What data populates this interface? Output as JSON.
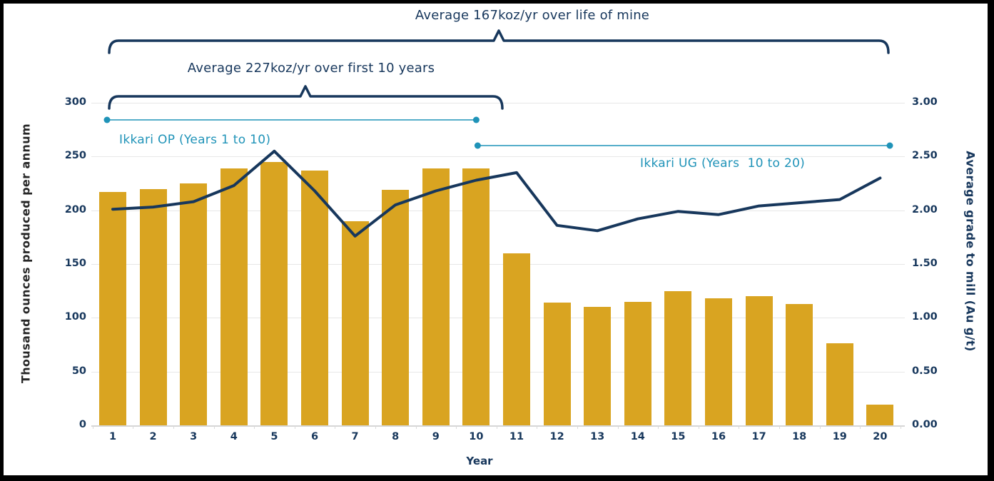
{
  "annotations": {
    "life_of_mine": {
      "label": "Average 167koz/yr over life of mine",
      "years": "1 to 20",
      "value_koz_per_yr": 167
    },
    "first_ten_years": {
      "label": "Average 227koz/yr over first 10 years",
      "years": "1 to 10",
      "value_koz_per_yr": 227
    },
    "ikkari_op": {
      "label": "Ikkari OP (Years 1 to 10)"
    },
    "ikkari_ug": {
      "label": "Ikkari UG (Years  10 to 20)"
    }
  },
  "axes": {
    "x_title": "Year",
    "left_title": "Thousand ounces produced per annum",
    "right_title": "Average grade to mill (Au g/t)",
    "left_ticks": [
      "0",
      "50",
      "100",
      "150",
      "200",
      "250",
      "300"
    ],
    "right_ticks": [
      "0.00",
      "0.50",
      "1.00",
      "1.50",
      "2.00",
      "2.50",
      "3.00"
    ]
  },
  "chart_data": {
    "type": "bar+line",
    "categories": [
      "1",
      "2",
      "3",
      "4",
      "5",
      "6",
      "7",
      "8",
      "9",
      "10",
      "11",
      "12",
      "13",
      "14",
      "15",
      "16",
      "17",
      "18",
      "19",
      "20"
    ],
    "xlabel": "Year",
    "series": [
      {
        "name": "Thousand ounces produced per annum",
        "chart": "bar",
        "axis": "left",
        "color": "#D9A421",
        "values": [
          217,
          220,
          225,
          239,
          245,
          237,
          190,
          219,
          239,
          239,
          160,
          114,
          110,
          115,
          125,
          118,
          120,
          113,
          76,
          19
        ]
      },
      {
        "name": "Average grade to mill (Au g/t)",
        "chart": "line",
        "axis": "right",
        "color": "#17375C",
        "values": [
          2.01,
          2.03,
          2.08,
          2.23,
          2.55,
          2.18,
          1.76,
          2.05,
          2.18,
          2.28,
          2.35,
          1.86,
          1.81,
          1.92,
          1.99,
          1.96,
          2.04,
          2.07,
          2.1,
          2.3
        ]
      }
    ],
    "left_ylim": [
      0,
      300
    ],
    "right_ylim": [
      0,
      3.0
    ],
    "grid": true,
    "legend_position": "none"
  },
  "colors": {
    "bar_gold": "#D9A421",
    "navy": "#17375C",
    "teal": "#1F93B8",
    "gridline": "#E7E7E7",
    "axis_line": "#D6D6D6",
    "left_title_text": "#262626",
    "frame": "#000000",
    "background": "#FFFFFF"
  }
}
